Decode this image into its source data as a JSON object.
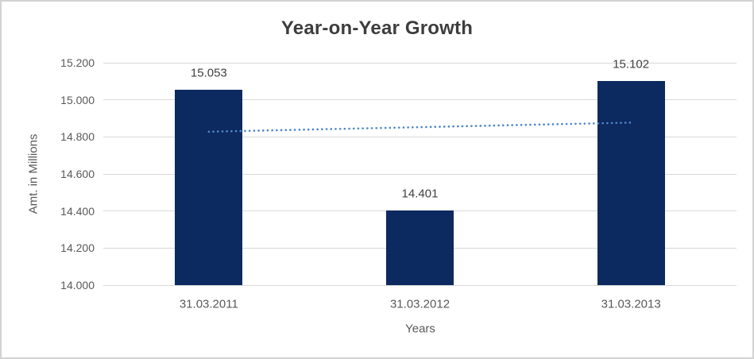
{
  "chart_data": {
    "type": "bar",
    "title": "Year-on-Year Growth",
    "xlabel": "Years",
    "ylabel": "Amt. in Millions",
    "categories": [
      "31.03.2011",
      "31.03.2012",
      "31.03.2013"
    ],
    "values": [
      15.053,
      14.401,
      15.102
    ],
    "data_labels": [
      "15.053",
      "14.401",
      "15.102"
    ],
    "ylim": [
      14.0,
      15.2
    ],
    "ytick_step": 0.2,
    "ytick_labels": [
      "14.000",
      "14.200",
      "14.400",
      "14.600",
      "14.800",
      "15.000",
      "15.200"
    ],
    "grid": true,
    "legend": "none",
    "bar_color": "#0c2960",
    "gridline_color": "#d9d9d9",
    "trendline": {
      "type": "linear",
      "style": "dotted",
      "color": "#5087c8",
      "start_value": 14.828,
      "end_value": 14.877
    }
  }
}
